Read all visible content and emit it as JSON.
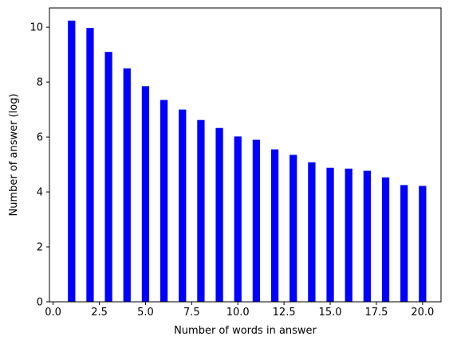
{
  "chart_data": {
    "type": "bar",
    "xlabel": "Number of words in answer",
    "ylabel": "Number of answer (log)",
    "xlim": [
      -0.2,
      21.0
    ],
    "ylim": [
      0,
      10.7
    ],
    "x_ticks": [
      0.0,
      2.5,
      5.0,
      7.5,
      10.0,
      12.5,
      15.0,
      17.5,
      20.0
    ],
    "x_tick_labels": [
      "0.0",
      "2.5",
      "5.0",
      "7.5",
      "10.0",
      "12.5",
      "15.0",
      "17.5",
      "20.0"
    ],
    "y_ticks": [
      0,
      2,
      4,
      6,
      8,
      10
    ],
    "y_tick_labels": [
      "0",
      "2",
      "4",
      "6",
      "8",
      "10"
    ],
    "bar_color": "#0000ff",
    "grid": false,
    "x": [
      1,
      2,
      3,
      4,
      5,
      6,
      7,
      8,
      9,
      10,
      11,
      12,
      13,
      14,
      15,
      16,
      17,
      18,
      19,
      20
    ],
    "values": [
      10.24,
      9.97,
      9.1,
      8.5,
      7.85,
      7.35,
      7.0,
      6.62,
      6.33,
      6.02,
      5.9,
      5.55,
      5.35,
      5.08,
      4.88,
      4.85,
      4.77,
      4.53,
      4.25,
      4.22
    ]
  }
}
